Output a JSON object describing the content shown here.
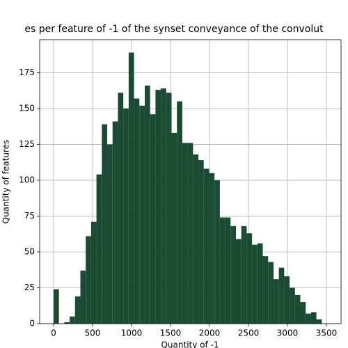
{
  "chart_data": {
    "type": "histogram",
    "title": "es per feature of -1 of the synset conveyance of the convolut",
    "x_label": "Quantity of -1",
    "y_label": "Quantity of features",
    "color": "#1b4b33",
    "bins": [
      0,
      68.8,
      137.6,
      206.4,
      275.2,
      344,
      412.8,
      481.6,
      550.4,
      619.2,
      688,
      756.8,
      825.6,
      894.4,
      963.2,
      1032,
      1100.8,
      1169.6,
      1238.4,
      1307.2,
      1376,
      1444.8,
      1513.6,
      1582.4,
      1651.2,
      1720,
      1788.8,
      1857.6,
      1926.4,
      1995.2,
      2064,
      2132.8,
      2201.6,
      2270.4,
      2339.2,
      2408,
      2476.8,
      2545.6,
      2614.4,
      2683.2,
      2752,
      2820.8,
      2889.6,
      2958.4,
      3027.2,
      3096,
      3164.8,
      3233.6,
      3302.4,
      3371.2,
      3440
    ],
    "values": [
      24,
      0,
      1,
      5,
      19,
      37,
      61,
      71,
      104,
      139,
      125,
      141,
      161,
      150,
      189,
      157,
      152,
      166,
      146,
      163,
      164,
      161,
      133,
      155,
      126,
      126,
      118,
      114,
      108,
      105,
      100,
      74,
      74,
      68,
      59,
      68,
      63,
      55,
      56,
      47,
      43,
      31,
      39,
      33,
      25,
      20,
      15,
      7,
      8,
      3
    ],
    "xlim": [
      -178,
      3687
    ],
    "ylim": [
      0,
      198
    ],
    "xticks": [
      0,
      500,
      1000,
      1500,
      2000,
      2500,
      3000,
      3500
    ],
    "yticks": [
      0,
      25,
      50,
      75,
      100,
      125,
      150,
      175
    ],
    "grid": true
  }
}
